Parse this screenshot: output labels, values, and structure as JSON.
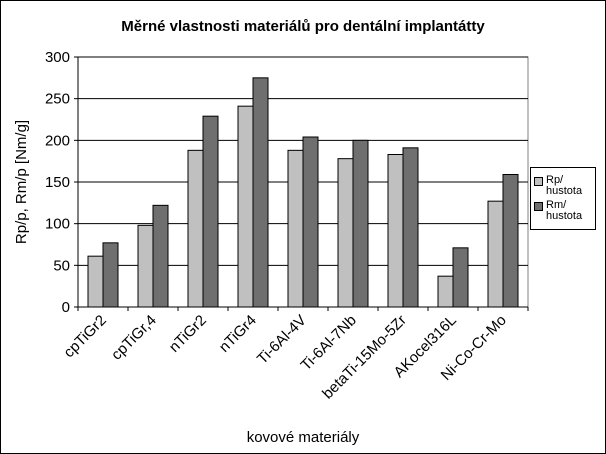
{
  "chart_data": {
    "type": "bar",
    "title": "Měrné vlastnosti materiálů pro dentální implantátty",
    "x_label": "kovové materiály",
    "y_label": "Rp/p, Rm/p [Nm/g]",
    "categories": [
      "cpTiGr2",
      "cpTiGr,4",
      "nTiGr2",
      "nTiGr4",
      "Ti-6Al-4V",
      "Ti-6Al-7Nb",
      "betaTi-15Mo-5Zr",
      "AKocel316L",
      "Ni-Co-Cr-Mo"
    ],
    "series": [
      {
        "name": "Rp/ hustota",
        "color": "#c0c0c0",
        "values": [
          61,
          98,
          188,
          241,
          188,
          178,
          183,
          37,
          127
        ]
      },
      {
        "name": "Rm/ hustota",
        "color": "#6f6f6f",
        "values": [
          77,
          122,
          229,
          275,
          204,
          200,
          191,
          71,
          159
        ]
      }
    ],
    "ylim": [
      0,
      300
    ],
    "yticks": [
      0,
      50,
      100,
      150,
      200,
      250,
      300
    ],
    "grid": true,
    "legend": "right"
  }
}
